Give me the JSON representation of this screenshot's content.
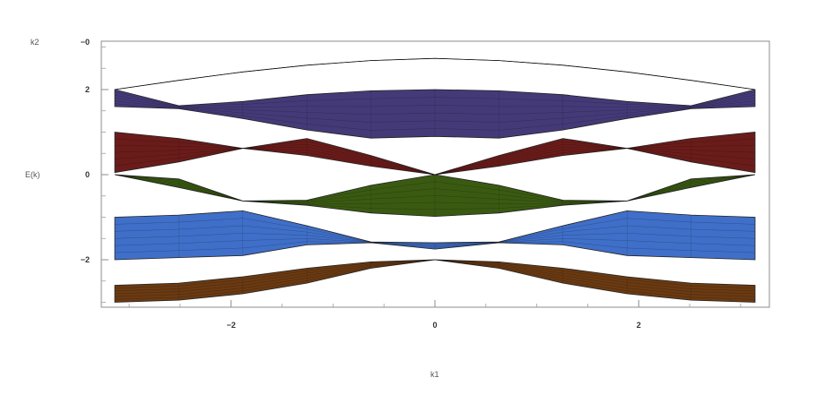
{
  "chart_data": {
    "type": "area",
    "title": "",
    "xlabel": "k1",
    "ylabel": "E(k)",
    "zlabel": "k2",
    "xlim": [
      -3.14159,
      3.14159
    ],
    "ylim": [
      -3.0,
      3.1
    ],
    "x_ticks": [
      -2,
      0,
      2
    ],
    "x_tick_labels": [
      "−2",
      "0",
      "2"
    ],
    "y_ticks": [
      2,
      0,
      -2
    ],
    "y_tick_labels": [
      "2",
      "0",
      "−2"
    ],
    "y_top_tick_overlap": "−0",
    "grid": false,
    "legend": "none",
    "bands": [
      {
        "color": "#c2661f",
        "lower": [
          2.0,
          2.217,
          2.414,
          2.572,
          2.682,
          2.732,
          2.682,
          2.572,
          2.414,
          2.217,
          2.0
        ],
        "upper": [
          2.0,
          2.217,
          2.414,
          2.572,
          2.682,
          2.732,
          2.682,
          2.572,
          2.414,
          2.217,
          2.0
        ]
      },
      {
        "color": "#453a78",
        "lower": [
          1.6,
          1.55,
          1.32,
          1.05,
          0.86,
          0.9,
          0.86,
          1.05,
          1.32,
          1.55,
          1.6
        ],
        "upper": [
          2.0,
          1.62,
          1.72,
          1.88,
          1.97,
          2.0,
          1.97,
          1.88,
          1.72,
          1.62,
          2.0
        ]
      },
      {
        "color": "#6a1c1a",
        "lower": [
          0.05,
          0.3,
          0.62,
          0.45,
          0.2,
          0.0,
          0.2,
          0.45,
          0.62,
          0.3,
          0.05
        ],
        "upper": [
          1.0,
          0.85,
          0.62,
          0.85,
          0.45,
          0.0,
          0.45,
          0.85,
          0.62,
          0.85,
          1.0
        ]
      },
      {
        "color": "#3a5a12",
        "lower": [
          0.0,
          -0.3,
          -0.62,
          -0.72,
          -0.9,
          -0.98,
          -0.9,
          -0.72,
          -0.62,
          -0.3,
          0.0
        ],
        "upper": [
          0.0,
          -0.1,
          -0.62,
          -0.6,
          -0.25,
          0.0,
          -0.25,
          -0.6,
          -0.62,
          -0.1,
          0.0
        ]
      },
      {
        "color": "#3f6fc8",
        "lower": [
          -2.0,
          -1.95,
          -1.9,
          -1.65,
          -1.6,
          -1.75,
          -1.6,
          -1.65,
          -1.9,
          -1.95,
          -2.0
        ],
        "upper": [
          -1.0,
          -0.95,
          -0.85,
          -1.2,
          -1.58,
          -1.6,
          -1.58,
          -1.2,
          -0.85,
          -0.95,
          -1.0
        ]
      },
      {
        "color": "#6a3a12",
        "lower": [
          -3.0,
          -2.95,
          -2.8,
          -2.55,
          -2.2,
          -2.0,
          -2.2,
          -2.55,
          -2.8,
          -2.95,
          -3.0
        ],
        "upper": [
          -2.6,
          -2.55,
          -2.4,
          -2.2,
          -2.05,
          -2.0,
          -2.05,
          -2.2,
          -2.4,
          -2.55,
          -2.6
        ]
      }
    ]
  }
}
